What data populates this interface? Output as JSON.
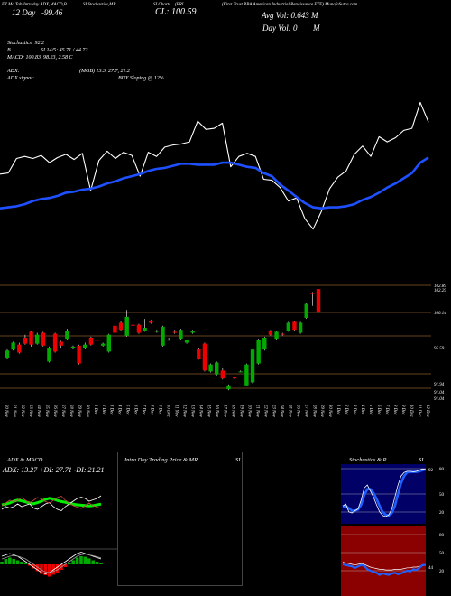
{
  "header": {
    "line1_a": "EZ Ma Tab",
    "line1_b": "Intraday ADX,MACD,B",
    "line1_c": "SI,Stochastics,MR",
    "line1_d": "SI Charts",
    "line1_e": "(ERI",
    "line1_f": "(First Trust RBA American Industrial Renaissance ETF) MunafaSutra.com",
    "price_label": "12 Day",
    "price_change": "-99.46",
    "close_label": "CL: 100.59",
    "avg_vol": "Avg Vol: 0.643 M",
    "day_vol": "Day Vol: 0",
    "day_vol_unit": "M",
    "stoch_label": "Stochastics: 92.2",
    "stoch_b": "B",
    "si_line": "SI 14/5: 45.71 / 44.72",
    "macd_line": "MACD: 100.83,  98.23, 2.58  C",
    "adx_label": "ADX:",
    "adx_vals": "(MGB) 13.3, 27.7, 21.2",
    "adx_signal_label": "ADX signal:",
    "adx_signal": "BUY Sloping @ 12%"
  },
  "price_levels": [
    "102.89",
    "102.29",
    "100.14",
    "95.59",
    "91.94",
    "91.04",
    "91.04"
  ],
  "dates": [
    "20 Nov",
    "21 Nov",
    "22 Nov",
    "23 Nov",
    "24 Nov",
    "25 Nov",
    "26 Nov",
    "27 Nov",
    "28 Nov",
    "29 Nov",
    "30 Nov",
    "1 Dec",
    "2 Dec",
    "3 Dec",
    "4 Dec",
    "5 Dec",
    "6 Dec",
    "7 Dec",
    "8 Dec",
    "9 Dec",
    "10 Dec",
    "11 Nov",
    "12 Nov",
    "13 Nov",
    "14 Nov",
    "15 Nov",
    "16 Nov",
    "17 Nov",
    "18 Nov",
    "19 Nov",
    "20 Nov",
    "21 Nov",
    "22 Nov",
    "23 Nov",
    "24 Nov",
    "25 Nov",
    "26 Nov",
    "27 Nov",
    "28 Nov",
    "29 Nov",
    "30 Nov",
    "1 Dec",
    "2 Dec",
    "3 Dec",
    "4 Dec",
    "5 Dec",
    "6 Dec",
    "7 Dec",
    "8 Dec",
    "9 Dec",
    "10 Dec",
    "11 Dec",
    "12 Dec"
  ],
  "panels": {
    "adx_title": "ADX  & MACD",
    "adx_readout": "ADX: 13.27  +DI: 27.71  -DI: 21.21",
    "intraday_title": "Intra  Day Trading Price  & MR",
    "intraday_si": "SI",
    "stoch_title": "Stochastics & R",
    "stoch_si": "SI",
    "stoch_ticks": [
      "80",
      "50",
      "20"
    ],
    "stoch_value": "92",
    "rsi_ticks": [
      "80",
      "50",
      "20"
    ],
    "rsi_value": "44"
  },
  "colors": {
    "bg": "#000000",
    "up": "#00aa00",
    "down": "#ee0000",
    "ma": "#1e50ff",
    "level": "#8b5a2b",
    "adx_plus": "#00ee00",
    "adx_minus": "#cc4444",
    "stoch_bg": "#000066",
    "rsi_bg": "#8b0000"
  },
  "chart_data": [
    {
      "type": "line",
      "series": [
        {
          "values": [
            97.5,
            97.6,
            99.0,
            99.2,
            99.0,
            99.3,
            98.6,
            99.1,
            99.4,
            98.9,
            99.5,
            95.9,
            98.8,
            99.7,
            99.0,
            99.6,
            99.3,
            97.3,
            99.6,
            99.2,
            100.1,
            100.3,
            100.4,
            100.6,
            102.6,
            101.8,
            101.9,
            102.4,
            98.2,
            99.2,
            99.5,
            99.2,
            97.0,
            96.9,
            96.2,
            94.9,
            95.2,
            93.2,
            92.2,
            93.9,
            96.1,
            97.2,
            97.8,
            99.4,
            100.2,
            99.2,
            101.1,
            100.6,
            101.0,
            101.7,
            101.9,
            104.4,
            102.5
          ]
        },
        {
          "values": [
            94.2,
            94.3,
            94.4,
            94.6,
            94.9,
            95.1,
            95.2,
            95.4,
            95.7,
            95.8,
            96.0,
            96.1,
            96.3,
            96.6,
            96.8,
            97.1,
            97.3,
            97.5,
            97.8,
            98.0,
            98.1,
            98.3,
            98.5,
            98.5,
            98.4,
            98.4,
            98.4,
            98.6,
            98.6,
            98.4,
            98.2,
            98.1,
            97.6,
            97.3,
            96.5,
            95.9,
            95.3,
            94.7,
            94.3,
            94.2,
            94.3,
            94.3,
            94.4,
            94.6,
            95.0,
            95.3,
            95.7,
            96.2,
            96.6,
            97.1,
            97.6,
            98.6,
            99.1
          ]
        }
      ]
    },
    {
      "type": "bar",
      "categories": [
        "20 Nov",
        "21 Nov",
        "22 Nov",
        "23 Nov",
        "24 Nov",
        "25 Nov",
        "26 Nov",
        "27 Nov",
        "28 Nov",
        "29 Nov",
        "30 Nov",
        "1 Dec",
        "2 Dec",
        "3 Dec",
        "4 Dec",
        "5 Dec",
        "6 Dec",
        "7 Dec",
        "8 Dec",
        "9 Dec",
        "10 Dec",
        "11 Nov",
        "12 Nov",
        "13 Nov",
        "14 Nov",
        "15 Nov",
        "16 Nov",
        "17 Nov",
        "18 Nov",
        "19 Nov",
        "20 Nov",
        "21 Nov",
        "22 Nov",
        "23 Nov",
        "24 Nov",
        "25 Nov",
        "26 Nov",
        "27 Nov",
        "28 Nov",
        "29 Nov",
        "30 Nov",
        "1 Dec",
        "2 Dec",
        "3 Dec",
        "4 Dec",
        "5 Dec",
        "6 Dec",
        "7 Dec",
        "8 Dec",
        "9 Dec",
        "10 Dec",
        "11 Dec",
        "12 Dec"
      ],
      "series": [
        {
          "values": [
            96.0,
            96.8,
            97.3,
            98.0,
            98.6,
            97.4,
            98.5,
            95.6,
            98.4,
            97.6,
            97.9,
            97.0,
            97.2,
            97.0,
            98.0,
            97.8,
            97.2,
            96.6,
            99.2,
            99.5,
            98.2,
            99.3,
            99.3,
            98.7,
            99.7,
            98.6,
            97.2,
            97.8,
            98.6,
            97.9,
            97.5,
            98.5,
            96.9,
            97.4,
            94.6,
            94.3,
            94.7,
            92.8,
            94.0,
            94.6,
            93.2,
            93.5,
            95.4,
            96.8,
            98.7,
            97.9,
            98.4,
            98.7,
            99.6,
            98.5,
            100.0,
            102.5,
            102.9
          ]
        },
        {
          "values": [
            96.7,
            97.5,
            96.5,
            97.4,
            97.3,
            98.3,
            97.2,
            97.0,
            96.6,
            97.2,
            98.7,
            97.1,
            95.4,
            97.3,
            97.3,
            97.7,
            97.4,
            98.3,
            98.5,
            98.8,
            100.1,
            99.2,
            98.5,
            99.0,
            99.5,
            98.7,
            99.1,
            97.8,
            98.5,
            98.8,
            97.8,
            98.7,
            95.9,
            94.7,
            95.3,
            95.5,
            93.9,
            93.2,
            93.9,
            94.6,
            95.3,
            96.8,
            97.8,
            98.0,
            98.3,
            98.6,
            98.3,
            99.5,
            98.8,
            99.5,
            101.4,
            102.4,
            100.6
          ]
        },
        {
          "values": [
            96.9,
            97.6,
            97.5,
            98.3,
            98.7,
            98.5,
            98.6,
            97.1,
            98.5,
            97.7,
            98.9,
            97.2,
            97.3,
            97.5,
            98.1,
            97.9,
            97.5,
            98.4,
            99.3,
            99.7,
            100.8,
            99.5,
            99.4,
            99.9,
            99.8,
            98.8,
            99.2,
            98.0,
            98.8,
            98.9,
            97.7,
            98.8,
            97.0,
            97.5,
            95.4,
            95.6,
            95.0,
            93.3,
            94.1,
            94.7,
            95.4,
            96.9,
            97.9,
            98.1,
            98.8,
            98.7,
            98.5,
            99.6,
            99.7,
            99.6,
            101.5,
            102.6,
            102.9
          ]
        },
        {
          "values": [
            95.9,
            96.7,
            96.4,
            97.3,
            97.1,
            97.3,
            97.1,
            95.5,
            96.5,
            97.0,
            97.8,
            96.9,
            95.3,
            96.9,
            97.2,
            97.6,
            97.1,
            96.5,
            98.4,
            98.7,
            98.1,
            99.1,
            98.4,
            98.6,
            99.4,
            98.5,
            97.1,
            97.7,
            98.4,
            97.8,
            97.4,
            98.4,
            95.8,
            94.6,
            94.5,
            94.2,
            93.8,
            92.7,
            93.8,
            94.5,
            93.1,
            93.4,
            95.3,
            96.7,
            98.2,
            97.8,
            98.2,
            98.6,
            98.7,
            98.4,
            99.9,
            101.2,
            100.5
          ]
        }
      ]
    }
  ]
}
